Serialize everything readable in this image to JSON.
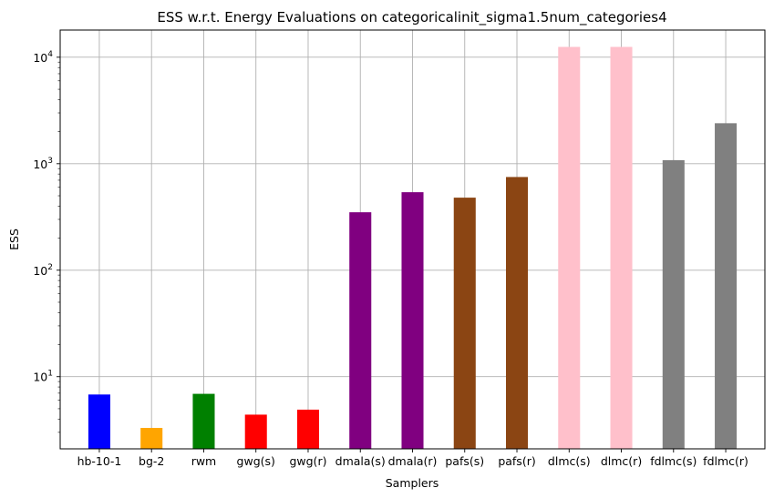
{
  "chart_data": {
    "type": "bar",
    "title": "ESS w.r.t. Energy Evaluations on categoricalinit_sigma1.5num_categories4",
    "xlabel": "Samplers",
    "ylabel": "ESS",
    "yscale": "log",
    "ylim": [
      2.1,
      18000
    ],
    "grid": true,
    "categories": [
      "hb-10-1",
      "bg-2",
      "rwm",
      "gwg(s)",
      "gwg(r)",
      "dmala(s)",
      "dmala(r)",
      "pafs(s)",
      "pafs(r)",
      "dlmc(s)",
      "dlmc(r)",
      "fdlmc(s)",
      "fdlmc(r)"
    ],
    "values": [
      6.8,
      3.3,
      6.9,
      4.4,
      4.9,
      350,
      540,
      480,
      750,
      12500,
      12500,
      1080,
      2400
    ],
    "colors": [
      "#0000ff",
      "#ffa500",
      "#008000",
      "#ff0000",
      "#ff0000",
      "#800080",
      "#800080",
      "#8b4513",
      "#8b4513",
      "#ffc0cb",
      "#ffc0cb",
      "#808080",
      "#808080"
    ],
    "y_major_ticks": [
      {
        "value": 10,
        "base": "10",
        "exp": "1"
      },
      {
        "value": 100,
        "base": "10",
        "exp": "2"
      },
      {
        "value": 1000,
        "base": "10",
        "exp": "3"
      },
      {
        "value": 10000,
        "base": "10",
        "exp": "4"
      }
    ]
  }
}
